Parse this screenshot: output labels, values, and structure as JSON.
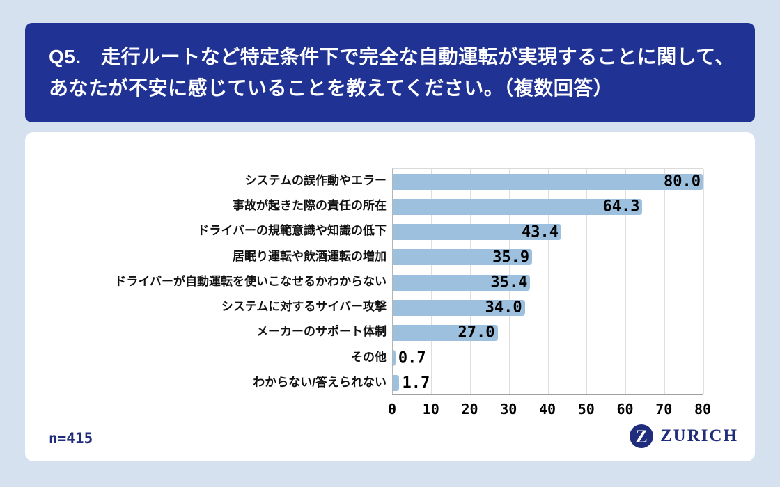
{
  "page": {
    "background": "#d6e1ef"
  },
  "header": {
    "bg": "#203293",
    "text_color": "#ffffff",
    "line1": "Q5.　走行ルートなど特定条件下で完全な自動運転が実現することに関して、",
    "line2": "あなたが不安に感じていることを教えてください。（複数回答）"
  },
  "footer": {
    "sample_size": "n=415",
    "brand": "ZURICH",
    "brand_initial": "Z",
    "brand_color": "#1f2d7c"
  },
  "chart_data": {
    "type": "bar",
    "orientation": "horizontal",
    "title": "",
    "xlabel": "",
    "ylabel": "",
    "categories": [
      "システムの誤作動やエラー",
      "事故が起きた際の責任の所在",
      "ドライバーの規範意識や知識の低下",
      "居眠り運転や飲酒運転の増加",
      "ドライバーが自動運転を使いこなせるかわからない",
      "システムに対するサイバー攻撃",
      "メーカーのサポート体制",
      "その他",
      "わからない/答えられない"
    ],
    "values": [
      80.0,
      64.3,
      43.4,
      35.9,
      35.4,
      34.0,
      27.0,
      0.7,
      1.7
    ],
    "value_labels": [
      "80.0",
      "64.3",
      "43.4",
      "35.9",
      "35.4",
      "34.0",
      "27.0",
      "0.7",
      "1.7"
    ],
    "xlim": [
      0,
      80
    ],
    "xticks": [
      0,
      10,
      20,
      30,
      40,
      50,
      60,
      70,
      80
    ],
    "grid": true,
    "legend": false,
    "bar_color": "#9dc0de",
    "value_label_color": "#000000"
  }
}
